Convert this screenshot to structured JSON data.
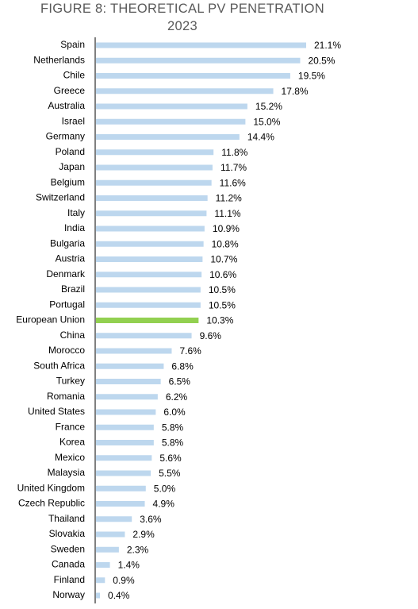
{
  "chart_data": {
    "type": "bar",
    "orientation": "horizontal",
    "title": "FIGURE 8: THEORETICAL PV PENETRATION 2023",
    "categories": [
      "Spain",
      "Netherlands",
      "Chile",
      "Greece",
      "Australia",
      "Israel",
      "Germany",
      "Poland",
      "Japan",
      "Belgium",
      "Switzerland",
      "Italy",
      "India",
      "Bulgaria",
      "Austria",
      "Denmark",
      "Brazil",
      "Portugal",
      "European Union",
      "China",
      "Morocco",
      "South Africa",
      "Turkey",
      "Romania",
      "United States",
      "France",
      "Korea",
      "Mexico",
      "Malaysia",
      "United Kingdom",
      "Czech Republic",
      "Thailand",
      "Slovakia",
      "Sweden",
      "Canada",
      "Finland",
      "Norway"
    ],
    "values": [
      21.1,
      20.5,
      19.5,
      17.8,
      15.2,
      15.0,
      14.4,
      11.8,
      11.7,
      11.6,
      11.2,
      11.1,
      10.9,
      10.8,
      10.7,
      10.6,
      10.5,
      10.5,
      10.3,
      9.6,
      7.6,
      6.8,
      6.5,
      6.2,
      6.0,
      5.8,
      5.8,
      5.6,
      5.5,
      5.0,
      4.9,
      3.6,
      2.9,
      2.3,
      1.4,
      0.9,
      0.4
    ],
    "value_labels": [
      "21.1%",
      "20.5%",
      "19.5%",
      "17.8%",
      "15.2%",
      "15.0%",
      "14.4%",
      "11.8%",
      "11.7%",
      "11.6%",
      "11.2%",
      "11.1%",
      "10.9%",
      "10.8%",
      "10.7%",
      "10.6%",
      "10.5%",
      "10.5%",
      "10.3%",
      "9.6%",
      "7.6%",
      "6.8%",
      "6.5%",
      "6.2%",
      "6.0%",
      "5.8%",
      "5.8%",
      "5.6%",
      "5.5%",
      "5.0%",
      "4.9%",
      "3.6%",
      "2.9%",
      "2.3%",
      "1.4%",
      "0.9%",
      "0.4%"
    ],
    "colors": [
      "#bdd7ee",
      "#bdd7ee",
      "#bdd7ee",
      "#bdd7ee",
      "#bdd7ee",
      "#bdd7ee",
      "#bdd7ee",
      "#bdd7ee",
      "#bdd7ee",
      "#bdd7ee",
      "#bdd7ee",
      "#bdd7ee",
      "#bdd7ee",
      "#bdd7ee",
      "#bdd7ee",
      "#bdd7ee",
      "#bdd7ee",
      "#bdd7ee",
      "#92d050",
      "#bdd7ee",
      "#bdd7ee",
      "#bdd7ee",
      "#bdd7ee",
      "#bdd7ee",
      "#bdd7ee",
      "#bdd7ee",
      "#bdd7ee",
      "#bdd7ee",
      "#bdd7ee",
      "#bdd7ee",
      "#bdd7ee",
      "#bdd7ee",
      "#bdd7ee",
      "#bdd7ee",
      "#bdd7ee",
      "#bdd7ee",
      "#bdd7ee"
    ]
  }
}
